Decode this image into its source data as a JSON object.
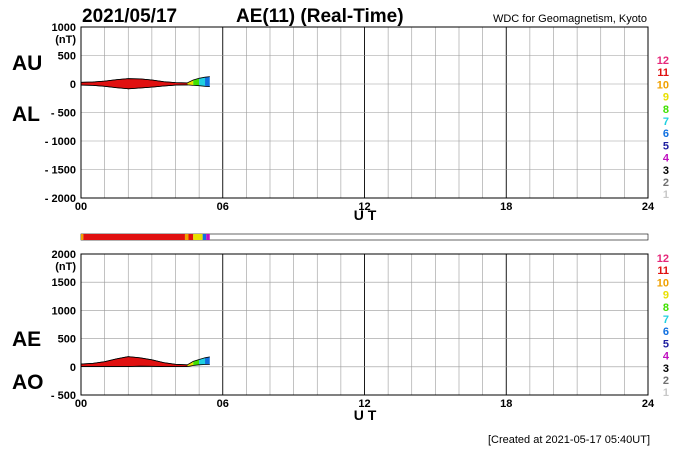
{
  "header": {
    "date": "2021/05/17",
    "title": "AE(11) (Real-Time)",
    "source": "WDC for Geomagnetism, Kyoto"
  },
  "footer": {
    "created": "[Created at 2021-05-17 05:40UT]"
  },
  "station_legend": {
    "labels": [
      "12",
      "11",
      "10",
      "9",
      "8",
      "7",
      "6",
      "5",
      "4",
      "3",
      "2",
      "1"
    ],
    "colors": [
      "#e6287a",
      "#e01010",
      "#f0a000",
      "#e8e000",
      "#40e000",
      "#20d0e0",
      "#1070e0",
      "#2020a0",
      "#c010c0",
      "#000000",
      "#707070",
      "#c8c8c8"
    ]
  },
  "coverage_bar": {
    "segments": [
      {
        "from": 0.0,
        "to": 0.1,
        "color": "#f0a000"
      },
      {
        "from": 0.1,
        "to": 4.4,
        "color": "#e01010"
      },
      {
        "from": 4.4,
        "to": 4.55,
        "color": "#f0a000"
      },
      {
        "from": 4.55,
        "to": 4.75,
        "color": "#e01010"
      },
      {
        "from": 4.75,
        "to": 5.15,
        "color": "#e8e000"
      },
      {
        "from": 5.15,
        "to": 5.3,
        "color": "#1070e0"
      },
      {
        "from": 5.3,
        "to": 5.45,
        "color": "#c010c0"
      }
    ]
  },
  "chart_data": [
    {
      "type": "area",
      "panel": "AU/AL",
      "labels_top": "AU",
      "labels_bottom": "AL",
      "ylabel": "(nT)",
      "xlabel": "U T",
      "xlim": [
        0,
        24
      ],
      "ylim": [
        -2000,
        1000
      ],
      "x_ticks": [
        "00",
        "06",
        "12",
        "18",
        "24"
      ],
      "y_ticks": [
        1000,
        500,
        0,
        -500,
        -1000,
        -1500,
        -2000
      ],
      "grid": true,
      "fill_color": "#e01010",
      "tail_colors": [
        "#e8e000",
        "#40e000",
        "#20d0e0",
        "#1070e0",
        "#c010c0"
      ],
      "series": [
        {
          "name": "AU",
          "x": [
            0,
            0.5,
            1,
            1.5,
            2,
            2.5,
            3,
            3.5,
            4,
            4.5,
            4.75,
            5,
            5.25,
            5.45
          ],
          "values": [
            30,
            35,
            50,
            75,
            95,
            90,
            70,
            40,
            25,
            20,
            70,
            100,
            120,
            130
          ]
        },
        {
          "name": "AL",
          "x": [
            0,
            0.5,
            1,
            1.5,
            2,
            2.5,
            3,
            3.5,
            4,
            4.5,
            4.75,
            5,
            5.25,
            5.45
          ],
          "values": [
            -20,
            -25,
            -40,
            -65,
            -85,
            -70,
            -55,
            -35,
            -20,
            -15,
            -25,
            -30,
            -40,
            -45
          ]
        }
      ]
    },
    {
      "type": "area",
      "panel": "AE/AO",
      "labels_top": "AE",
      "labels_bottom": "AO",
      "ylabel": "(nT)",
      "xlabel": "U T",
      "xlim": [
        0,
        24
      ],
      "ylim": [
        -500,
        2000
      ],
      "x_ticks": [
        "00",
        "06",
        "12",
        "18",
        "24"
      ],
      "y_ticks": [
        2000,
        1500,
        1000,
        500,
        0,
        -500
      ],
      "grid": true,
      "fill_color": "#e01010",
      "tail_colors": [
        "#e8e000",
        "#40e000",
        "#20d0e0",
        "#1070e0",
        "#c010c0"
      ],
      "series": [
        {
          "name": "AE",
          "x": [
            0,
            0.5,
            1,
            1.5,
            2,
            2.5,
            3,
            3.5,
            4,
            4.5,
            4.75,
            5,
            5.25,
            5.45
          ],
          "values": [
            50,
            60,
            90,
            140,
            180,
            160,
            125,
            75,
            45,
            35,
            95,
            130,
            160,
            175
          ]
        },
        {
          "name": "AO",
          "x": [
            0,
            0.5,
            1,
            1.5,
            2,
            2.5,
            3,
            3.5,
            4,
            4.5,
            4.75,
            5,
            5.25,
            5.45
          ],
          "values": [
            5,
            5,
            5,
            5,
            5,
            10,
            8,
            3,
            3,
            3,
            23,
            35,
            40,
            43
          ]
        }
      ]
    }
  ]
}
